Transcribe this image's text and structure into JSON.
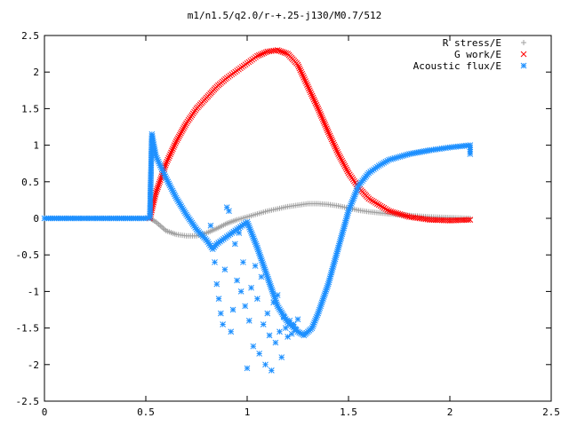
{
  "chart_data": {
    "type": "scatter",
    "title": "m1/n1.5/q2.0/r-+.25-j130/M0.7/512",
    "xlabel": "",
    "ylabel": "",
    "xlim": [
      0,
      2.5
    ],
    "ylim": [
      -2.5,
      2.5
    ],
    "x_ticks": [
      "0",
      "0.5",
      "1",
      "1.5",
      "2",
      "2.5"
    ],
    "y_ticks": [
      "2.5",
      "2",
      "1.5",
      "1",
      "0.5",
      "0",
      "-0.5",
      "-1",
      "-1.5",
      "-2",
      "-2.5"
    ],
    "grid": false,
    "legend_position": "top-right",
    "series": [
      {
        "name": "R stress/E",
        "marker": "plus",
        "color": "#a0a0a0",
        "points": [
          [
            0.0,
            0
          ],
          [
            0.1,
            0
          ],
          [
            0.2,
            0
          ],
          [
            0.3,
            0
          ],
          [
            0.4,
            0
          ],
          [
            0.5,
            0
          ],
          [
            0.52,
            0
          ],
          [
            0.55,
            -0.05
          ],
          [
            0.6,
            -0.17
          ],
          [
            0.65,
            -0.22
          ],
          [
            0.7,
            -0.24
          ],
          [
            0.75,
            -0.24
          ],
          [
            0.8,
            -0.2
          ],
          [
            0.85,
            -0.14
          ],
          [
            0.9,
            -0.07
          ],
          [
            0.95,
            -0.02
          ],
          [
            1.0,
            0.02
          ],
          [
            1.05,
            0.06
          ],
          [
            1.1,
            0.1
          ],
          [
            1.15,
            0.13
          ],
          [
            1.2,
            0.16
          ],
          [
            1.25,
            0.18
          ],
          [
            1.3,
            0.2
          ],
          [
            1.35,
            0.2
          ],
          [
            1.4,
            0.19
          ],
          [
            1.45,
            0.17
          ],
          [
            1.5,
            0.14
          ],
          [
            1.55,
            0.11
          ],
          [
            1.6,
            0.09
          ],
          [
            1.7,
            0.06
          ],
          [
            1.8,
            0.04
          ],
          [
            1.9,
            0.02
          ],
          [
            2.0,
            0.01
          ],
          [
            2.1,
            0.0
          ]
        ]
      },
      {
        "name": "G work/E",
        "marker": "cross",
        "color": "#ff0000",
        "points": [
          [
            0.52,
            0
          ],
          [
            0.55,
            0.35
          ],
          [
            0.6,
            0.75
          ],
          [
            0.65,
            1.05
          ],
          [
            0.7,
            1.3
          ],
          [
            0.75,
            1.5
          ],
          [
            0.8,
            1.65
          ],
          [
            0.85,
            1.8
          ],
          [
            0.9,
            1.92
          ],
          [
            0.95,
            2.02
          ],
          [
            1.0,
            2.12
          ],
          [
            1.05,
            2.22
          ],
          [
            1.1,
            2.28
          ],
          [
            1.15,
            2.3
          ],
          [
            1.2,
            2.25
          ],
          [
            1.25,
            2.1
          ],
          [
            1.3,
            1.8
          ],
          [
            1.35,
            1.5
          ],
          [
            1.4,
            1.18
          ],
          [
            1.45,
            0.88
          ],
          [
            1.5,
            0.62
          ],
          [
            1.55,
            0.42
          ],
          [
            1.6,
            0.27
          ],
          [
            1.7,
            0.1
          ],
          [
            1.8,
            0.02
          ],
          [
            1.9,
            -0.02
          ],
          [
            2.0,
            -0.03
          ],
          [
            2.1,
            -0.02
          ]
        ]
      },
      {
        "name": "Acoustic flux/E",
        "marker": "star",
        "color": "#1e90ff",
        "points": [
          [
            0.0,
            0
          ],
          [
            0.1,
            0
          ],
          [
            0.2,
            0
          ],
          [
            0.3,
            0
          ],
          [
            0.4,
            0
          ],
          [
            0.5,
            0
          ],
          [
            0.52,
            0.01
          ],
          [
            0.53,
            1.15
          ],
          [
            0.55,
            0.85
          ],
          [
            0.6,
            0.55
          ],
          [
            0.65,
            0.28
          ],
          [
            0.7,
            0.05
          ],
          [
            0.75,
            -0.15
          ],
          [
            0.8,
            -0.3
          ],
          [
            0.83,
            -0.42
          ],
          [
            0.85,
            -0.35
          ],
          [
            0.9,
            -0.25
          ],
          [
            0.95,
            -0.15
          ],
          [
            1.0,
            -0.05
          ],
          [
            1.05,
            -0.4
          ],
          [
            1.1,
            -0.8
          ],
          [
            1.15,
            -1.2
          ],
          [
            1.2,
            -1.42
          ],
          [
            1.25,
            -1.55
          ],
          [
            1.28,
            -1.6
          ],
          [
            1.32,
            -1.5
          ],
          [
            1.35,
            -1.3
          ],
          [
            1.4,
            -0.9
          ],
          [
            1.45,
            -0.4
          ],
          [
            1.5,
            0.1
          ],
          [
            1.55,
            0.45
          ],
          [
            1.6,
            0.62
          ],
          [
            1.65,
            0.72
          ],
          [
            1.7,
            0.8
          ],
          [
            1.8,
            0.88
          ],
          [
            1.9,
            0.93
          ],
          [
            2.0,
            0.97
          ],
          [
            2.1,
            1.0
          ],
          [
            2.1,
            0.88
          ]
        ],
        "scatter_cloud": [
          [
            0.82,
            -0.1
          ],
          [
            0.84,
            -0.6
          ],
          [
            0.85,
            -0.9
          ],
          [
            0.86,
            -1.1
          ],
          [
            0.87,
            -1.3
          ],
          [
            0.88,
            -1.45
          ],
          [
            0.89,
            -0.7
          ],
          [
            0.9,
            0.15
          ],
          [
            0.91,
            0.1
          ],
          [
            0.92,
            -1.55
          ],
          [
            0.93,
            -1.25
          ],
          [
            0.94,
            -0.35
          ],
          [
            0.95,
            -0.85
          ],
          [
            0.96,
            -0.2
          ],
          [
            0.97,
            -1.0
          ],
          [
            0.98,
            -0.6
          ],
          [
            0.99,
            -1.2
          ],
          [
            1.0,
            -2.05
          ],
          [
            1.01,
            -1.4
          ],
          [
            1.02,
            -0.95
          ],
          [
            1.03,
            -1.75
          ],
          [
            1.04,
            -0.65
          ],
          [
            1.05,
            -1.1
          ],
          [
            1.06,
            -1.85
          ],
          [
            1.07,
            -0.8
          ],
          [
            1.08,
            -1.45
          ],
          [
            1.09,
            -2.0
          ],
          [
            1.1,
            -1.3
          ],
          [
            1.11,
            -1.6
          ],
          [
            1.12,
            -2.08
          ],
          [
            1.13,
            -1.15
          ],
          [
            1.14,
            -1.7
          ],
          [
            1.15,
            -1.05
          ],
          [
            1.16,
            -1.55
          ],
          [
            1.17,
            -1.9
          ],
          [
            1.18,
            -1.35
          ],
          [
            1.19,
            -1.5
          ],
          [
            1.2,
            -1.62
          ],
          [
            1.21,
            -1.4
          ],
          [
            1.22,
            -1.58
          ],
          [
            1.23,
            -1.45
          ],
          [
            1.24,
            -1.52
          ],
          [
            1.25,
            -1.38
          ]
        ]
      }
    ]
  }
}
